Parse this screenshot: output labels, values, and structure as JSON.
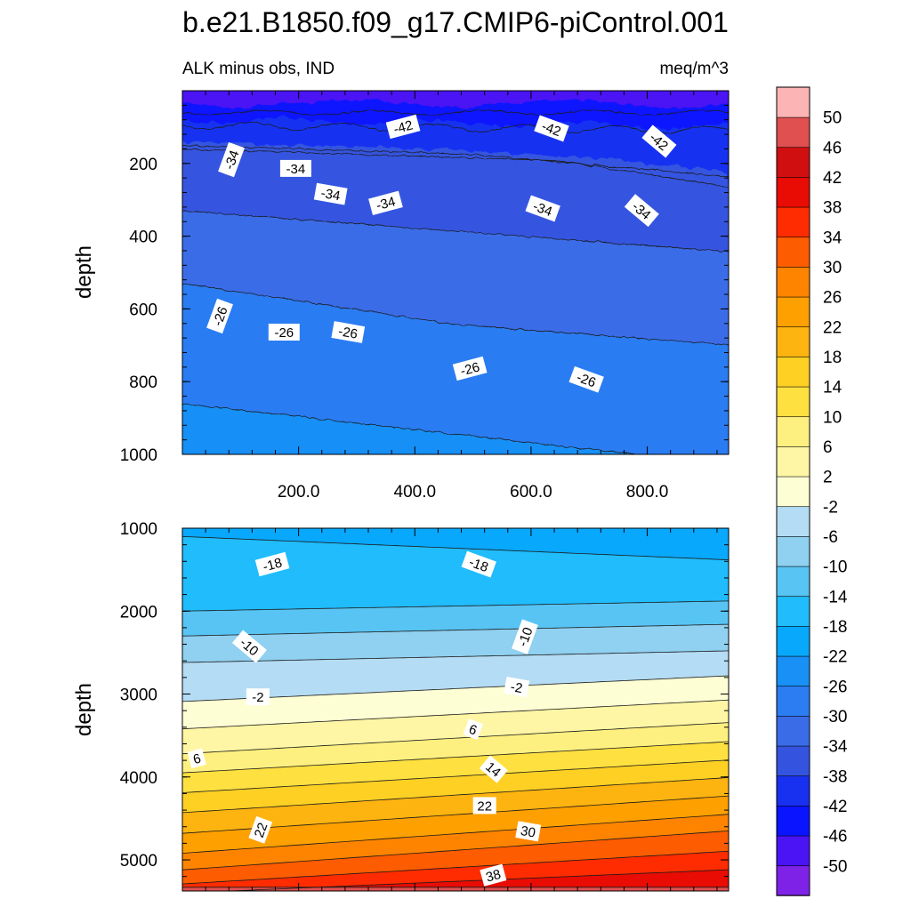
{
  "title": "b.e21.B1850.f09_g17.CMIP6-piControl.001",
  "chart_data": [
    {
      "type": "heatmap",
      "panel": "upper",
      "subtitle_left": "ALK minus obs, IND",
      "subtitle_right": "meq/m^3",
      "ylabel": "depth",
      "xlim": [
        0,
        940
      ],
      "ylim": [
        0,
        1000
      ],
      "y_reversed": true,
      "x_ticks": [
        "200.0",
        "400.0",
        "600.0",
        "800.0"
      ],
      "x_tick_values": [
        200,
        400,
        600,
        800
      ],
      "y_ticks": [
        "200",
        "400",
        "600",
        "800",
        "1000"
      ],
      "y_tick_values": [
        200,
        400,
        600,
        800,
        1000
      ],
      "contour_labels": [
        {
          "text": "-42",
          "x": 380,
          "y": 100
        },
        {
          "text": "-42",
          "x": 635,
          "y": 105
        },
        {
          "text": "-42",
          "x": 820,
          "y": 140
        },
        {
          "text": "-34",
          "x": 85,
          "y": 190
        },
        {
          "text": "-34",
          "x": 195,
          "y": 215
        },
        {
          "text": "-34",
          "x": 255,
          "y": 285
        },
        {
          "text": "-34",
          "x": 350,
          "y": 310
        },
        {
          "text": "-34",
          "x": 620,
          "y": 325
        },
        {
          "text": "-34",
          "x": 790,
          "y": 330
        },
        {
          "text": "-26",
          "x": 65,
          "y": 620
        },
        {
          "text": "-26",
          "x": 175,
          "y": 665
        },
        {
          "text": "-26",
          "x": 285,
          "y": 665
        },
        {
          "text": "-26",
          "x": 495,
          "y": 765
        },
        {
          "text": "-26",
          "x": 695,
          "y": 795
        }
      ]
    },
    {
      "type": "heatmap",
      "panel": "lower",
      "ylabel": "depth",
      "xlim": [
        0,
        940
      ],
      "ylim": [
        1000,
        5375
      ],
      "y_reversed": true,
      "y_ticks": [
        "1000",
        "2000",
        "3000",
        "4000",
        "5000"
      ],
      "y_tick_values": [
        1000,
        2000,
        3000,
        4000,
        5000
      ],
      "contour_labels": [
        {
          "text": "-18",
          "x": 155,
          "y": 1440
        },
        {
          "text": "-18",
          "x": 510,
          "y": 1440
        },
        {
          "text": "-10",
          "x": 115,
          "y": 2430
        },
        {
          "text": "-10",
          "x": 590,
          "y": 2310
        },
        {
          "text": "-2",
          "x": 130,
          "y": 3040
        },
        {
          "text": "-2",
          "x": 575,
          "y": 2920
        },
        {
          "text": "6",
          "x": 25,
          "y": 3780
        },
        {
          "text": "6",
          "x": 500,
          "y": 3430
        },
        {
          "text": "14",
          "x": 535,
          "y": 3910
        },
        {
          "text": "22",
          "x": 135,
          "y": 4640
        },
        {
          "text": "22",
          "x": 520,
          "y": 4350
        },
        {
          "text": "30",
          "x": 595,
          "y": 4660
        },
        {
          "text": "38",
          "x": 535,
          "y": 5190
        }
      ]
    }
  ],
  "colorbar": {
    "levels": [
      "-50",
      "-46",
      "-42",
      "-38",
      "-34",
      "-30",
      "-26",
      "-22",
      "-18",
      "-14",
      "-10",
      "-6",
      "-2",
      "2",
      "6",
      "10",
      "14",
      "18",
      "22",
      "26",
      "30",
      "34",
      "38",
      "42",
      "46",
      "50"
    ],
    "colors": [
      "#7e22e8",
      "#4a14f4",
      "#0a14ff",
      "#1830f0",
      "#3454e0",
      "#3a6ce8",
      "#2c7cf2",
      "#1890f6",
      "#08a8fc",
      "#20bcfc",
      "#58c4f4",
      "#90d0f0",
      "#b4dcf4",
      "#fefed4",
      "#fef6a4",
      "#fef080",
      "#fee040",
      "#fed024",
      "#feb410",
      "#fea000",
      "#fe8400",
      "#fe5c00",
      "#fe2c00",
      "#e80c04",
      "#d01010",
      "#e05050",
      "#fcb4b4"
    ]
  }
}
